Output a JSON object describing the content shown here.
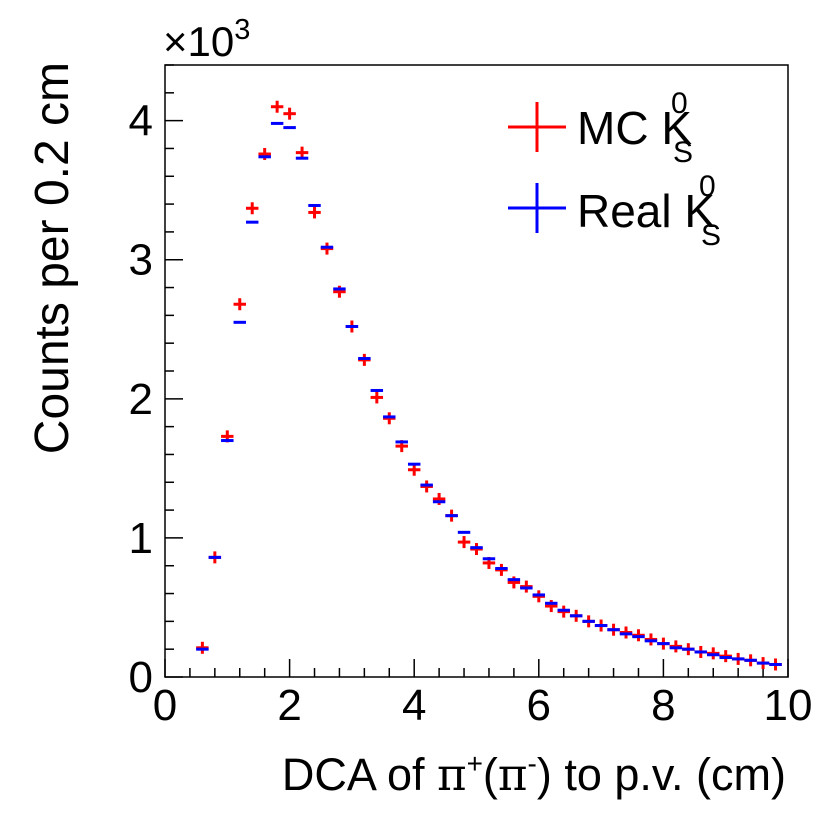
{
  "chart_data": {
    "type": "scatter",
    "title": "",
    "multiplier": {
      "prefix": "×10",
      "exponent": "3"
    },
    "xlabel": {
      "pre": "DCA of ",
      "pi1": "π",
      "sup1": "+",
      "mid": "(",
      "pi2": "π",
      "sup2": "-",
      "post": ") to p.v. (cm)"
    },
    "ylabel": "Counts per 0.2 cm",
    "xlim": [
      0,
      10
    ],
    "ylim": [
      0,
      4.4
    ],
    "x_ticks": [
      "0",
      "2",
      "4",
      "6",
      "8",
      "10"
    ],
    "x_tick_values": [
      0,
      2,
      4,
      6,
      8,
      10
    ],
    "y_ticks": [
      "0",
      "1",
      "2",
      "3",
      "4"
    ],
    "y_tick_values": [
      0,
      1,
      2,
      3,
      4
    ],
    "x": [
      0.6,
      0.8,
      1.0,
      1.2,
      1.4,
      1.6,
      1.8,
      2.0,
      2.2,
      2.4,
      2.6,
      2.8,
      3.0,
      3.2,
      3.4,
      3.6,
      3.8,
      4.0,
      4.2,
      4.4,
      4.6,
      4.8,
      5.0,
      5.2,
      5.4,
      5.6,
      5.8,
      6.0,
      6.2,
      6.4,
      6.6,
      6.8,
      7.0,
      7.2,
      7.4,
      7.6,
      7.8,
      8.0,
      8.2,
      8.4,
      8.6,
      8.8,
      9.0,
      9.2,
      9.4,
      9.6,
      9.8
    ],
    "series": [
      {
        "name": "MC",
        "color": "#ff0000",
        "values": [
          0.21,
          0.86,
          1.73,
          2.68,
          3.37,
          3.76,
          4.1,
          4.05,
          3.77,
          3.34,
          3.08,
          2.77,
          2.52,
          2.28,
          2.01,
          1.86,
          1.66,
          1.49,
          1.37,
          1.28,
          1.16,
          0.97,
          0.92,
          0.82,
          0.77,
          0.68,
          0.65,
          0.58,
          0.51,
          0.47,
          0.44,
          0.4,
          0.37,
          0.34,
          0.32,
          0.3,
          0.27,
          0.24,
          0.22,
          0.2,
          0.18,
          0.17,
          0.15,
          0.13,
          0.12,
          0.1,
          0.09
        ]
      },
      {
        "name": "Real",
        "color": "#0000ff",
        "values": [
          0.2,
          0.86,
          1.7,
          2.55,
          3.27,
          3.74,
          3.98,
          3.95,
          3.73,
          3.39,
          3.09,
          2.79,
          2.52,
          2.29,
          2.06,
          1.87,
          1.69,
          1.53,
          1.38,
          1.26,
          1.16,
          1.04,
          0.93,
          0.85,
          0.78,
          0.7,
          0.64,
          0.59,
          0.53,
          0.48,
          0.44,
          0.4,
          0.37,
          0.34,
          0.31,
          0.29,
          0.26,
          0.24,
          0.21,
          0.2,
          0.18,
          0.16,
          0.14,
          0.13,
          0.12,
          0.1,
          0.09
        ]
      }
    ],
    "legend": {
      "placement": "top-right",
      "entries": [
        {
          "label": "MC K",
          "sup": "0",
          "sub": "S",
          "color": "#ff0000"
        },
        {
          "label": "Real K",
          "sup": "0",
          "sub": "S",
          "color": "#0000ff"
        }
      ]
    }
  }
}
